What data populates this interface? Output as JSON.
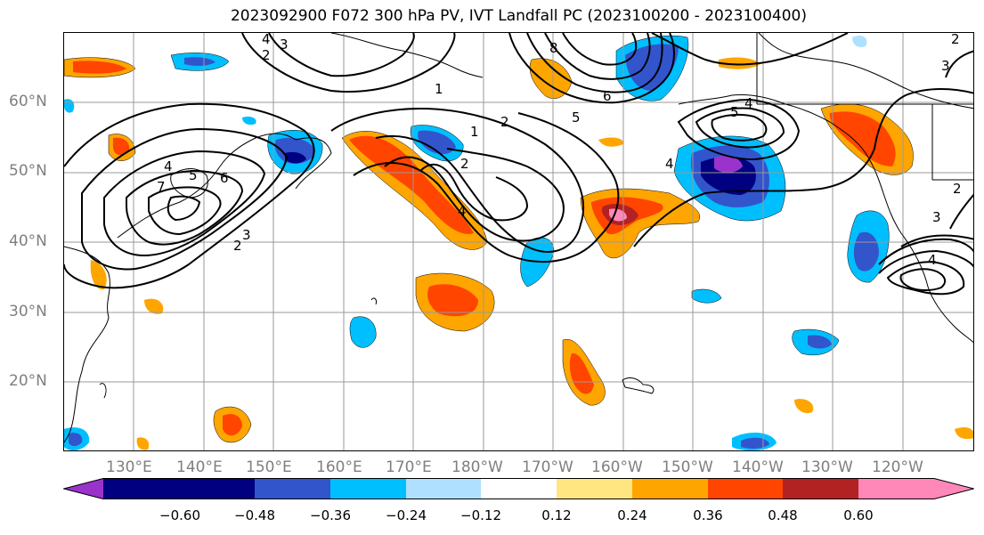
{
  "title": "2023092900 F072 300 hPa PV, IVT Landfall PC (2023100200 - 2023100400)",
  "lat_labels": [
    "60°N",
    "50°N",
    "40°N",
    "30°N",
    "20°N"
  ],
  "lon_labels": [
    "130°E",
    "140°E",
    "150°E",
    "160°E",
    "170°E",
    "180°W",
    "170°W",
    "160°W",
    "150°W",
    "140°W",
    "130°W",
    "120°W"
  ],
  "colorbar": {
    "ticks": [
      "−0.60",
      "−0.48",
      "−0.36",
      "−0.24",
      "−0.12",
      "0.12",
      "0.24",
      "0.36",
      "0.48",
      "0.60"
    ],
    "colors": [
      "#9933cc",
      "#000080",
      "#3355cc",
      "#00bfff",
      "#b0e0ff",
      "#ffffff",
      "#ffe680",
      "#ffa500",
      "#ff4500",
      "#b22222",
      "#ff88b8"
    ]
  },
  "contour_labels": [
    "4",
    "3",
    "2",
    "1",
    "2",
    "5",
    "4",
    "6",
    "7",
    "5",
    "4",
    "3",
    "2",
    "1",
    "2",
    "4",
    "8",
    "6",
    "5",
    "4",
    "3",
    "2",
    "3",
    "2",
    "4"
  ]
}
